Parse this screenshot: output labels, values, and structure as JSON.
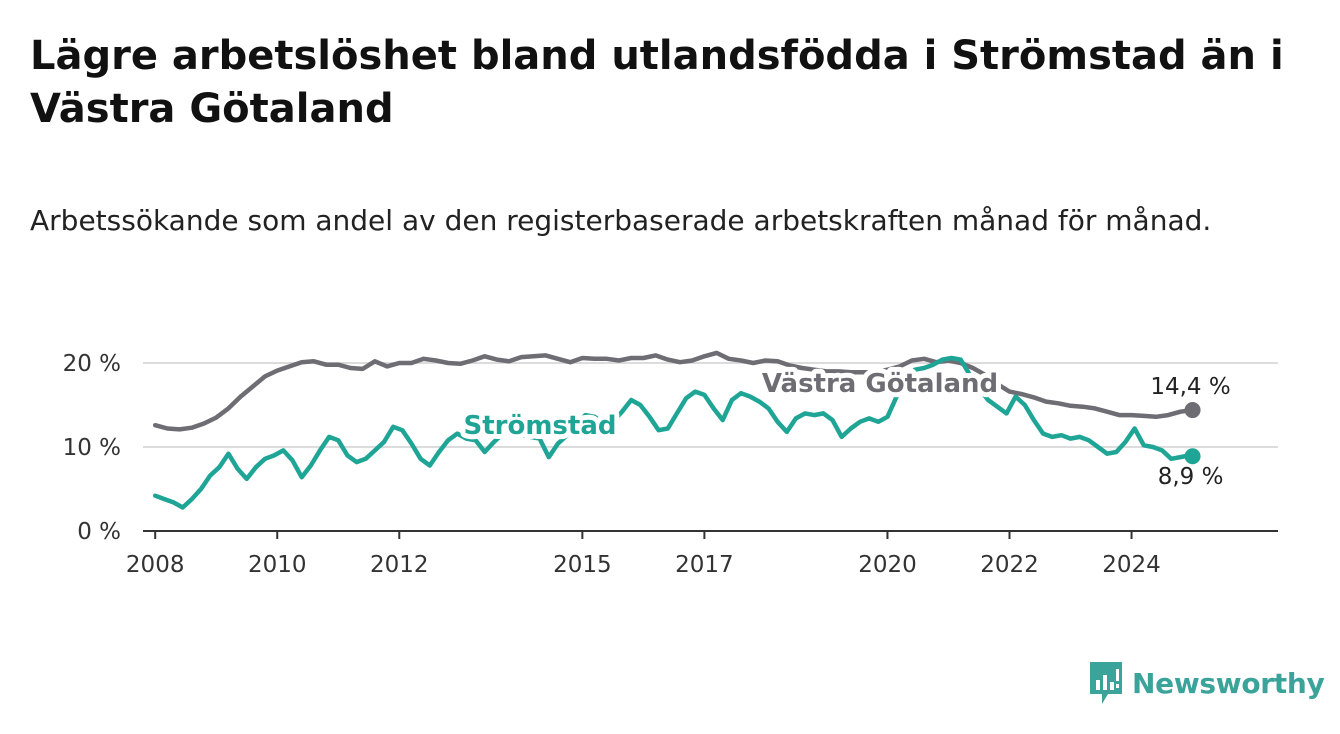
{
  "title": "Lägre arbetslöshet bland utlandsfödda i Strömstad än i Västra Götaland",
  "subtitle": "Arbetssökande som andel av den registerbaserade arbetskraften månad för månad.",
  "brand": {
    "name": "Newsworthy",
    "color": "#3aa39a"
  },
  "chart_data": {
    "type": "line",
    "ylim": [
      0,
      20
    ],
    "y_ticks": [
      {
        "value": 0,
        "label": "0 %"
      },
      {
        "value": 10,
        "label": "10 %"
      },
      {
        "value": 20,
        "label": "20 %"
      }
    ],
    "x_ticks": [
      2008,
      2010,
      2012,
      2015,
      2017,
      2020,
      2022,
      2024
    ],
    "x_tick_labels": [
      "2008",
      "2010",
      "2012",
      "2015",
      "2017",
      "2020",
      "2022",
      "2024"
    ],
    "grid": "horizontal",
    "series": [
      {
        "name": "Västra Götaland",
        "color": "#6e6d74",
        "end_label": "14,4 %",
        "points": [
          [
            2008.0,
            12.6
          ],
          [
            2008.2,
            12.2
          ],
          [
            2008.4,
            12.1
          ],
          [
            2008.6,
            12.3
          ],
          [
            2008.8,
            12.8
          ],
          [
            2009.0,
            13.5
          ],
          [
            2009.2,
            14.6
          ],
          [
            2009.4,
            16.0
          ],
          [
            2009.6,
            17.2
          ],
          [
            2009.8,
            18.4
          ],
          [
            2010.0,
            19.1
          ],
          [
            2010.2,
            19.6
          ],
          [
            2010.4,
            20.1
          ],
          [
            2010.6,
            20.2
          ],
          [
            2010.8,
            19.8
          ],
          [
            2011.0,
            19.8
          ],
          [
            2011.2,
            19.4
          ],
          [
            2011.4,
            19.3
          ],
          [
            2011.6,
            20.2
          ],
          [
            2011.8,
            19.6
          ],
          [
            2012.0,
            20.0
          ],
          [
            2012.2,
            20.0
          ],
          [
            2012.4,
            20.5
          ],
          [
            2012.6,
            20.3
          ],
          [
            2012.8,
            20.0
          ],
          [
            2013.0,
            19.9
          ],
          [
            2013.2,
            20.3
          ],
          [
            2013.4,
            20.8
          ],
          [
            2013.6,
            20.4
          ],
          [
            2013.8,
            20.2
          ],
          [
            2014.0,
            20.7
          ],
          [
            2014.2,
            20.8
          ],
          [
            2014.4,
            20.9
          ],
          [
            2014.6,
            20.5
          ],
          [
            2014.8,
            20.1
          ],
          [
            2015.0,
            20.6
          ],
          [
            2015.2,
            20.5
          ],
          [
            2015.4,
            20.5
          ],
          [
            2015.6,
            20.3
          ],
          [
            2015.8,
            20.6
          ],
          [
            2016.0,
            20.6
          ],
          [
            2016.2,
            20.9
          ],
          [
            2016.4,
            20.4
          ],
          [
            2016.6,
            20.1
          ],
          [
            2016.8,
            20.3
          ],
          [
            2017.0,
            20.8
          ],
          [
            2017.2,
            21.2
          ],
          [
            2017.4,
            20.5
          ],
          [
            2017.6,
            20.3
          ],
          [
            2017.8,
            20.0
          ],
          [
            2018.0,
            20.3
          ],
          [
            2018.2,
            20.2
          ],
          [
            2018.4,
            19.7
          ],
          [
            2018.6,
            19.4
          ],
          [
            2018.8,
            19.2
          ],
          [
            2019.0,
            19.0
          ],
          [
            2019.2,
            19.0
          ],
          [
            2019.4,
            18.9
          ],
          [
            2019.6,
            18.9
          ],
          [
            2019.8,
            18.9
          ],
          [
            2020.0,
            19.2
          ],
          [
            2020.2,
            19.6
          ],
          [
            2020.4,
            20.3
          ],
          [
            2020.6,
            20.5
          ],
          [
            2020.8,
            20.1
          ],
          [
            2021.0,
            20.3
          ],
          [
            2021.2,
            20.0
          ],
          [
            2021.4,
            19.4
          ],
          [
            2021.6,
            18.6
          ],
          [
            2021.8,
            17.5
          ],
          [
            2022.0,
            16.6
          ],
          [
            2022.2,
            16.3
          ],
          [
            2022.4,
            15.9
          ],
          [
            2022.6,
            15.4
          ],
          [
            2022.8,
            15.2
          ],
          [
            2023.0,
            14.9
          ],
          [
            2023.2,
            14.8
          ],
          [
            2023.4,
            14.6
          ],
          [
            2023.6,
            14.2
          ],
          [
            2023.8,
            13.8
          ],
          [
            2024.0,
            13.8
          ],
          [
            2024.2,
            13.7
          ],
          [
            2024.4,
            13.6
          ],
          [
            2024.6,
            13.8
          ],
          [
            2024.8,
            14.2
          ],
          [
            2025.0,
            14.4
          ]
        ]
      },
      {
        "name": "Strömstad",
        "color": "#1fa596",
        "end_label": "8,9 %",
        "points": [
          [
            2008.0,
            4.2
          ],
          [
            2008.15,
            3.8
          ],
          [
            2008.3,
            3.4
          ],
          [
            2008.45,
            2.8
          ],
          [
            2008.6,
            3.8
          ],
          [
            2008.75,
            5.0
          ],
          [
            2008.9,
            6.6
          ],
          [
            2009.05,
            7.6
          ],
          [
            2009.2,
            9.2
          ],
          [
            2009.35,
            7.4
          ],
          [
            2009.5,
            6.2
          ],
          [
            2009.65,
            7.6
          ],
          [
            2009.8,
            8.6
          ],
          [
            2009.95,
            9.0
          ],
          [
            2010.1,
            9.6
          ],
          [
            2010.25,
            8.4
          ],
          [
            2010.4,
            6.4
          ],
          [
            2010.55,
            7.8
          ],
          [
            2010.7,
            9.6
          ],
          [
            2010.85,
            11.2
          ],
          [
            2011.0,
            10.8
          ],
          [
            2011.15,
            9.0
          ],
          [
            2011.3,
            8.2
          ],
          [
            2011.45,
            8.6
          ],
          [
            2011.6,
            9.6
          ],
          [
            2011.75,
            10.6
          ],
          [
            2011.9,
            12.4
          ],
          [
            2012.05,
            12.0
          ],
          [
            2012.2,
            10.4
          ],
          [
            2012.35,
            8.6
          ],
          [
            2012.5,
            7.8
          ],
          [
            2012.65,
            9.4
          ],
          [
            2012.8,
            10.8
          ],
          [
            2012.95,
            11.6
          ],
          [
            2013.1,
            11.0
          ],
          [
            2013.25,
            10.8
          ],
          [
            2013.4,
            9.4
          ],
          [
            2013.55,
            10.6
          ],
          [
            2013.7,
            11.6
          ],
          [
            2013.85,
            11.8
          ],
          [
            2014.0,
            11.4
          ],
          [
            2014.15,
            11.2
          ],
          [
            2014.3,
            11.0
          ],
          [
            2014.45,
            8.8
          ],
          [
            2014.6,
            10.4
          ],
          [
            2014.75,
            11.4
          ],
          [
            2014.9,
            12.8
          ],
          [
            2015.05,
            13.8
          ],
          [
            2015.2,
            13.6
          ],
          [
            2015.35,
            12.8
          ],
          [
            2015.5,
            13.0
          ],
          [
            2015.65,
            14.2
          ],
          [
            2015.8,
            15.6
          ],
          [
            2015.95,
            15.0
          ],
          [
            2016.1,
            13.6
          ],
          [
            2016.25,
            12.0
          ],
          [
            2016.4,
            12.2
          ],
          [
            2016.55,
            14.0
          ],
          [
            2016.7,
            15.8
          ],
          [
            2016.85,
            16.6
          ],
          [
            2017.0,
            16.2
          ],
          [
            2017.15,
            14.6
          ],
          [
            2017.3,
            13.2
          ],
          [
            2017.45,
            15.6
          ],
          [
            2017.6,
            16.4
          ],
          [
            2017.75,
            16.0
          ],
          [
            2017.9,
            15.4
          ],
          [
            2018.05,
            14.6
          ],
          [
            2018.2,
            13.0
          ],
          [
            2018.35,
            11.8
          ],
          [
            2018.5,
            13.4
          ],
          [
            2018.65,
            14.0
          ],
          [
            2018.8,
            13.8
          ],
          [
            2018.95,
            14.0
          ],
          [
            2019.1,
            13.2
          ],
          [
            2019.25,
            11.2
          ],
          [
            2019.4,
            12.2
          ],
          [
            2019.55,
            13.0
          ],
          [
            2019.7,
            13.4
          ],
          [
            2019.85,
            13.0
          ],
          [
            2020.0,
            13.6
          ],
          [
            2020.15,
            16.0
          ],
          [
            2020.3,
            18.0
          ],
          [
            2020.45,
            19.2
          ],
          [
            2020.6,
            19.4
          ],
          [
            2020.75,
            19.8
          ],
          [
            2020.9,
            20.4
          ],
          [
            2021.05,
            20.6
          ],
          [
            2021.2,
            20.4
          ],
          [
            2021.35,
            18.6
          ],
          [
            2021.5,
            17.0
          ],
          [
            2021.65,
            15.6
          ],
          [
            2021.8,
            14.8
          ],
          [
            2021.95,
            14.0
          ],
          [
            2022.1,
            16.0
          ],
          [
            2022.25,
            15.0
          ],
          [
            2022.4,
            13.2
          ],
          [
            2022.55,
            11.6
          ],
          [
            2022.7,
            11.2
          ],
          [
            2022.85,
            11.4
          ],
          [
            2023.0,
            11.0
          ],
          [
            2023.15,
            11.2
          ],
          [
            2023.3,
            10.8
          ],
          [
            2023.45,
            10.0
          ],
          [
            2023.6,
            9.2
          ],
          [
            2023.75,
            9.4
          ],
          [
            2023.9,
            10.6
          ],
          [
            2024.05,
            12.2
          ],
          [
            2024.2,
            10.2
          ],
          [
            2024.35,
            10.0
          ],
          [
            2024.5,
            9.6
          ],
          [
            2024.65,
            8.6
          ],
          [
            2024.8,
            8.8
          ],
          [
            2024.95,
            9.0
          ],
          [
            2025.0,
            8.9
          ]
        ]
      }
    ]
  }
}
